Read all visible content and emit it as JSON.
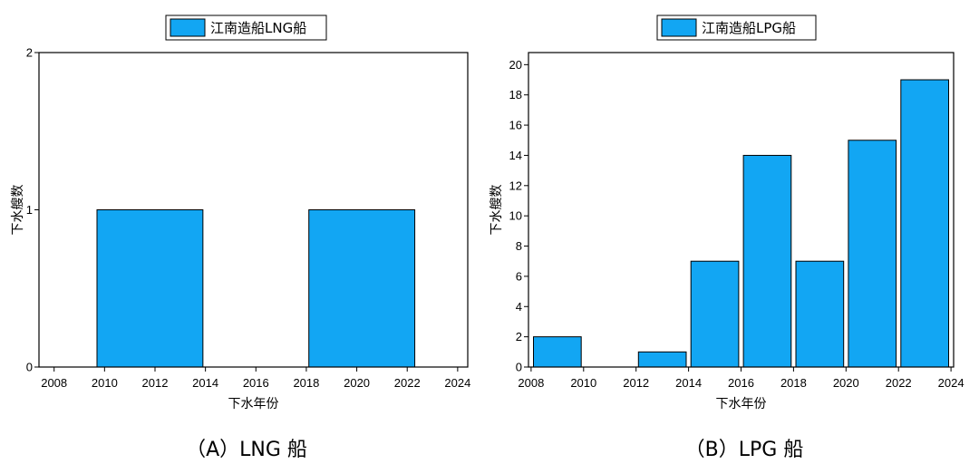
{
  "panels": [
    {
      "caption": "（A）LNG 船"
    },
    {
      "caption": "（B）LPG 船"
    }
  ],
  "colors": {
    "bar_fill": "#12A6F3",
    "bar_outline": "#000000",
    "axis": "#000000"
  },
  "chart_data": [
    {
      "type": "bar",
      "xlabel": "下水年份",
      "ylabel": "下水艘数",
      "xlim": [
        2007.4,
        2024.4
      ],
      "ylim": [
        0,
        2
      ],
      "xticks": [
        2008,
        2010,
        2012,
        2014,
        2016,
        2018,
        2020,
        2022,
        2024
      ],
      "yticks": [
        0,
        1,
        2
      ],
      "grid": false,
      "legend_position": "top-center",
      "series": [
        {
          "name": "江南造船LNG船",
          "bars": [
            {
              "x0": 2009.7,
              "x1": 2013.9,
              "value": 1
            },
            {
              "x0": 2013.9,
              "x1": 2018.1,
              "value": 0
            },
            {
              "x0": 2018.1,
              "x1": 2022.3,
              "value": 1
            }
          ]
        }
      ]
    },
    {
      "type": "bar",
      "xlabel": "下水年份",
      "ylabel": "下水艘数",
      "xlim": [
        2007.9,
        2024.1
      ],
      "ylim": [
        0,
        20.8
      ],
      "xticks": [
        2008,
        2010,
        2012,
        2014,
        2016,
        2018,
        2020,
        2022,
        2024
      ],
      "yticks": [
        0,
        2,
        4,
        6,
        8,
        10,
        12,
        14,
        16,
        18,
        20
      ],
      "grid": false,
      "legend_position": "top-center",
      "series": [
        {
          "name": "江南造船LPG船",
          "bars": [
            {
              "x0": 2008,
              "x1": 2010,
              "value": 2
            },
            {
              "x0": 2010,
              "x1": 2012,
              "value": 0
            },
            {
              "x0": 2012,
              "x1": 2014,
              "value": 1
            },
            {
              "x0": 2014,
              "x1": 2016,
              "value": 7
            },
            {
              "x0": 2016,
              "x1": 2018,
              "value": 14
            },
            {
              "x0": 2018,
              "x1": 2020,
              "value": 7
            },
            {
              "x0": 2020,
              "x1": 2022,
              "value": 15
            },
            {
              "x0": 2022,
              "x1": 2024,
              "value": 19
            }
          ]
        }
      ]
    }
  ]
}
